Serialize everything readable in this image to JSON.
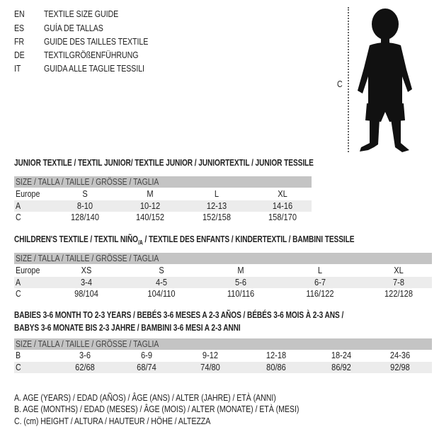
{
  "header": {
    "languages": [
      {
        "code": "EN",
        "title": "TEXTILE SIZE GUIDE"
      },
      {
        "code": "ES",
        "title": "GUÍA DE TALLAS"
      },
      {
        "code": "FR",
        "title": "GUIDE DES TAILLES TEXTILE"
      },
      {
        "code": "DE",
        "title": "TEXTILGRÖßENFÜHRUNG"
      },
      {
        "code": "IT",
        "title": "GUIDA ALLE TAGLIE TESSILI"
      }
    ]
  },
  "figure": {
    "measure_label": "C"
  },
  "size_header": "SIZE / TALLA / TAILLE / GRÖSSE / TAGLIA",
  "junior": {
    "title": "JUNIOR TEXTILE / TEXTIL JUNIOR/ TEXTILE JUNIOR / JUNIORTEXTIL / JUNIOR TESSILE",
    "rows": [
      {
        "label": "Europe",
        "values": [
          "S",
          "M",
          "L",
          "XL"
        ]
      },
      {
        "label": "A",
        "values": [
          "8-10",
          "10-12",
          "12-13",
          "14-16"
        ]
      },
      {
        "label": "C",
        "values": [
          "128/140",
          "140/152",
          "152/158",
          "158/170"
        ]
      }
    ]
  },
  "children": {
    "title_pre": "CHILDREN'S TEXTILE / TEXTIL NIÑO",
    "title_sub": "/A",
    "title_post": " / TEXTILE DES ENFANTS / KINDERTEXTIL / BAMBINI TESSILE",
    "rows": [
      {
        "label": "Europe",
        "values": [
          "XS",
          "S",
          "M",
          "L",
          "XL"
        ]
      },
      {
        "label": "A",
        "values": [
          "3-4",
          "4-5",
          "5-6",
          "6-7",
          "7-8"
        ]
      },
      {
        "label": "C",
        "values": [
          "98/104",
          "104/110",
          "110/116",
          "116/122",
          "122/128"
        ]
      }
    ]
  },
  "babies": {
    "title_line1": "BABIES 3-6 MONTH TO 2-3 YEARS / BEBÉS 3-6 MESES A 2-3 AÑOS / BÉBÉS 3-6 MOIS À 2-3 ANS /",
    "title_line2": "BABYS 3-6 MONATE BIS 2-3 JAHRE / BAMBINI 3-6 MESI A 2-3 ANNI",
    "rows": [
      {
        "label": "B",
        "values": [
          "3-6",
          "6-9",
          "9-12",
          "12-18",
          "18-24",
          "24-36"
        ]
      },
      {
        "label": "C",
        "values": [
          "62/68",
          "68/74",
          "74/80",
          "80/86",
          "86/92",
          "92/98"
        ]
      }
    ]
  },
  "legend": [
    "A. AGE (YEARS) / EDAD (AÑOS) / ÂGE (ANS) / ALTER (JAHRE) / ETÀ (ANNI)",
    "B. AGE (MONTHS) / EDAD (MESES) / ÂGE (MOIS) / ALTER (MONATE) / ETÀ (MESI)",
    "C. (cm) HEIGHT / ALTURA / HAUTEUR / HÖHE / ALTEZZA"
  ],
  "colors": {
    "header_bar": "#c4c4c4",
    "alt_row": "#ececec",
    "text": "#222222"
  }
}
